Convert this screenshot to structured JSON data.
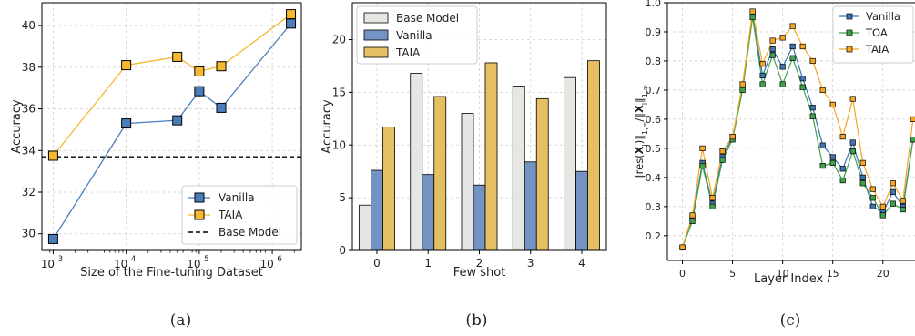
{
  "chart_data": [
    {
      "type": "line",
      "caption": "(a)",
      "xlabel": "Size of the Fine-tuning Dataset",
      "ylabel": "Accuracy",
      "xscale": "log",
      "xlim": [
        700,
        2500000
      ],
      "ylim": [
        29.2,
        41.1
      ],
      "yticks": [
        30,
        32,
        34,
        36,
        38,
        40
      ],
      "xticks": [
        {
          "value": 1000,
          "base": "10",
          "exp": "3"
        },
        {
          "value": 10000,
          "base": "10",
          "exp": "4"
        },
        {
          "value": 100000,
          "base": "10",
          "exp": "5"
        },
        {
          "value": 1000000,
          "base": "10",
          "exp": "6"
        }
      ],
      "grid": true,
      "legend_position": "lower-right",
      "baseline": {
        "name": "Base Model",
        "value": 33.7,
        "color": "#000000",
        "style": "dashed"
      },
      "series": [
        {
          "name": "Vanilla",
          "color": "#4a7ebb",
          "marker_fill": "#4a7ebb",
          "x": [
            1000,
            10000,
            50000,
            100000,
            200000,
            1800000
          ],
          "y": [
            29.75,
            35.3,
            35.45,
            36.85,
            36.05,
            40.1
          ]
        },
        {
          "name": "TAIA",
          "color": "#f5b82e",
          "marker_fill": "#f5b82e",
          "x": [
            1000,
            10000,
            50000,
            100000,
            200000,
            1800000
          ],
          "y": [
            33.75,
            38.1,
            38.5,
            37.8,
            38.05,
            40.55
          ]
        }
      ]
    },
    {
      "type": "bar",
      "caption": "(b)",
      "xlabel": "Few shot",
      "ylabel": "Accuracy",
      "ylim": [
        0,
        23.5
      ],
      "yticks": [
        0,
        5,
        10,
        15,
        20
      ],
      "categories": [
        "0",
        "1",
        "2",
        "3",
        "4"
      ],
      "grid": true,
      "legend_position": "top-left",
      "series": [
        {
          "name": "Base Model",
          "color": "#e6e6e3",
          "values": [
            4.3,
            16.8,
            13.0,
            15.6,
            16.4
          ]
        },
        {
          "name": "Vanilla",
          "color": "#7394c3",
          "values": [
            7.6,
            7.2,
            6.2,
            8.4,
            7.5
          ]
        },
        {
          "name": "TAIA",
          "color": "#e5bf62",
          "values": [
            11.7,
            14.6,
            17.8,
            14.4,
            18.0
          ]
        }
      ]
    },
    {
      "type": "line",
      "caption": "(c)",
      "xlabel": "Layer Index l",
      "ylabel": "‖res(X_l)‖₁,∞/‖X_l‖₁,∞",
      "xlim": [
        -1.5,
        23.2
      ],
      "ylim": [
        0.115,
        1.0
      ],
      "xticks": [
        0,
        5,
        10,
        15,
        20
      ],
      "yticks": [
        0.2,
        0.3,
        0.4,
        0.5,
        0.6,
        0.7,
        0.8,
        0.9,
        1.0
      ],
      "grid": true,
      "legend_position": "top-right",
      "x": [
        0,
        1,
        2,
        3,
        4,
        5,
        6,
        7,
        8,
        9,
        10,
        11,
        12,
        13,
        14,
        15,
        16,
        17,
        18,
        19,
        20,
        21,
        22,
        23
      ],
      "series": [
        {
          "name": "Vanilla",
          "color": "#3f74b0",
          "y": [
            0.16,
            0.26,
            0.45,
            0.31,
            0.47,
            0.54,
            0.71,
            0.96,
            0.75,
            0.84,
            0.78,
            0.85,
            0.74,
            0.64,
            0.51,
            0.47,
            0.43,
            0.52,
            0.4,
            0.3,
            0.28,
            0.35,
            0.3,
            0.53
          ]
        },
        {
          "name": "TOA",
          "color": "#3ea34a",
          "y": [
            0.16,
            0.25,
            0.44,
            0.3,
            0.46,
            0.53,
            0.7,
            0.95,
            0.72,
            0.82,
            0.72,
            0.81,
            0.71,
            0.61,
            0.44,
            0.45,
            0.39,
            0.49,
            0.38,
            0.33,
            0.27,
            0.31,
            0.29,
            0.53
          ]
        },
        {
          "name": "TAIA",
          "color": "#f5a623",
          "y": [
            0.16,
            0.27,
            0.5,
            0.33,
            0.49,
            0.54,
            0.72,
            0.97,
            0.79,
            0.87,
            0.88,
            0.92,
            0.85,
            0.8,
            0.7,
            0.65,
            0.54,
            0.67,
            0.45,
            0.36,
            0.3,
            0.38,
            0.32,
            0.6
          ]
        }
      ]
    }
  ]
}
